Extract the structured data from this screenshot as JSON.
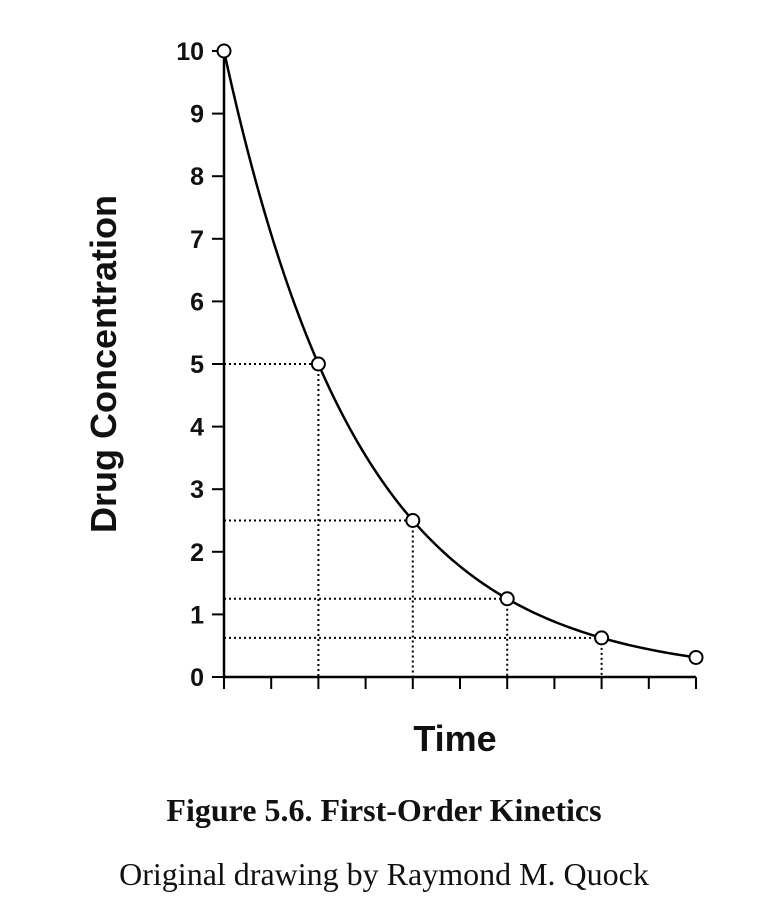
{
  "chart_data": {
    "type": "line",
    "ylabel": "Drug Concentration",
    "xlabel": "Time",
    "ylim": [
      0,
      10
    ],
    "xlim": [
      0,
      10
    ],
    "yticks": [
      "0",
      "1",
      "2",
      "3",
      "4",
      "5",
      "6",
      "7",
      "8",
      "9",
      "10"
    ],
    "x_minor_tick_count": 11,
    "grid": false,
    "points": [
      {
        "x": 0,
        "y": 10
      },
      {
        "x": 2,
        "y": 5
      },
      {
        "x": 4,
        "y": 2.5
      },
      {
        "x": 6,
        "y": 1.25
      },
      {
        "x": 8,
        "y": 0.625
      },
      {
        "x": 10,
        "y": 0.3125
      }
    ],
    "dotted_guides_at": [
      {
        "x": 2,
        "y": 5
      },
      {
        "x": 4,
        "y": 2.5
      },
      {
        "x": 6,
        "y": 1.25
      },
      {
        "x": 8,
        "y": 0.625
      }
    ],
    "colors": {
      "line": "#000000",
      "marker_fill": "#ffffff",
      "text": "#111111"
    }
  },
  "caption": {
    "title": "Figure 5.6. First-Order Kinetics",
    "credit": "Original drawing by Raymond M. Quock"
  }
}
